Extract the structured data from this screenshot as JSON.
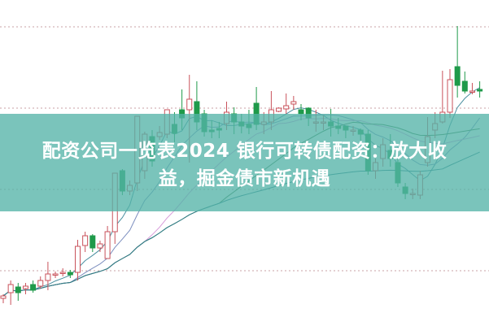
{
  "title_line1": "配资公司一览表2024 银行可转债配资：放大收",
  "title_line2": "益，掘金债市新机遇",
  "colors": {
    "up": "#c9525b",
    "down": "#1f9a4a",
    "banner": "#54b4a8",
    "grid": "#c9a0a6",
    "ma5": "#4a8fa0",
    "ma10": "#7d8fbf",
    "ma20": "#d79ad9",
    "ma30": "#3f7f4f",
    "ma60": "#2f7c8a"
  },
  "chart_data": {
    "type": "candlestick",
    "title": "",
    "grid": true,
    "candles": [
      [
        33,
        36,
        38,
        27
      ],
      [
        40,
        50,
        55,
        25
      ],
      [
        47,
        40,
        52,
        30
      ],
      [
        45,
        48,
        52,
        38
      ],
      [
        50,
        43,
        55,
        40
      ],
      [
        48,
        55,
        60,
        45
      ],
      [
        55,
        63,
        78,
        43
      ],
      [
        63,
        63,
        66,
        58
      ],
      [
        65,
        65,
        70,
        60
      ],
      [
        65,
        62,
        68,
        58
      ],
      [
        65,
        97,
        105,
        55
      ],
      [
        98,
        110,
        115,
        90
      ],
      [
        110,
        95,
        112,
        90
      ],
      [
        95,
        100,
        104,
        90
      ],
      [
        82,
        115,
        122,
        82
      ],
      [
        115,
        187,
        187,
        100
      ],
      [
        190,
        165,
        192,
        160
      ],
      [
        165,
        172,
        178,
        160
      ],
      [
        175,
        257,
        257,
        165
      ],
      [
        190,
        235,
        238,
        180
      ],
      [
        232,
        202,
        240,
        195
      ],
      [
        232,
        237,
        245,
        228
      ],
      [
        235,
        265,
        265,
        230
      ],
      [
        247,
        236,
        262,
        225
      ],
      [
        265,
        255,
        290,
        240
      ],
      [
        265,
        278,
        308,
        200
      ],
      [
        275,
        250,
        300,
        240
      ],
      [
        260,
        238,
        265,
        232
      ],
      [
        240,
        238,
        252,
        230
      ],
      [
        242,
        240,
        250,
        230
      ],
      [
        248,
        262,
        275,
        240
      ],
      [
        260,
        250,
        268,
        235
      ],
      [
        250,
        245,
        260,
        236
      ],
      [
        247,
        243,
        265,
        235
      ],
      [
        273,
        247,
        293,
        240
      ],
      [
        247,
        250,
        262,
        235
      ],
      [
        250,
        265,
        288,
        240
      ],
      [
        263,
        267,
        268,
        262
      ],
      [
        266,
        270,
        285,
        260
      ],
      [
        272,
        275,
        282,
        265
      ],
      [
        265,
        260,
        272,
        252
      ],
      [
        267,
        255,
        268,
        245
      ],
      [
        250,
        250,
        265,
        238
      ],
      [
        250,
        250,
        258,
        240
      ],
      [
        250,
        245,
        266,
        232
      ],
      [
        245,
        242,
        255,
        235
      ],
      [
        245,
        240,
        245,
        230
      ],
      [
        240,
        240,
        245,
        233
      ],
      [
        240,
        235,
        242,
        225
      ],
      [
        235,
        190,
        240,
        185
      ],
      [
        190,
        200,
        205,
        180
      ],
      [
        205,
        222,
        230,
        195
      ],
      [
        215,
        205,
        235,
        195
      ],
      [
        200,
        175,
        205,
        170
      ],
      [
        170,
        162,
        175,
        155
      ],
      [
        162,
        162,
        168,
        155
      ],
      [
        160,
        185,
        190,
        155
      ],
      [
        200,
        232,
        256,
        195
      ],
      [
        240,
        248,
        262,
        230
      ],
      [
        250,
        262,
        313,
        248
      ],
      [
        262,
        302,
        315,
        255
      ],
      [
        318,
        295,
        368,
        280
      ],
      [
        300,
        288,
        312,
        285
      ],
      [
        288,
        288,
        298,
        284
      ],
      [
        290,
        288,
        300,
        280
      ]
    ]
  }
}
